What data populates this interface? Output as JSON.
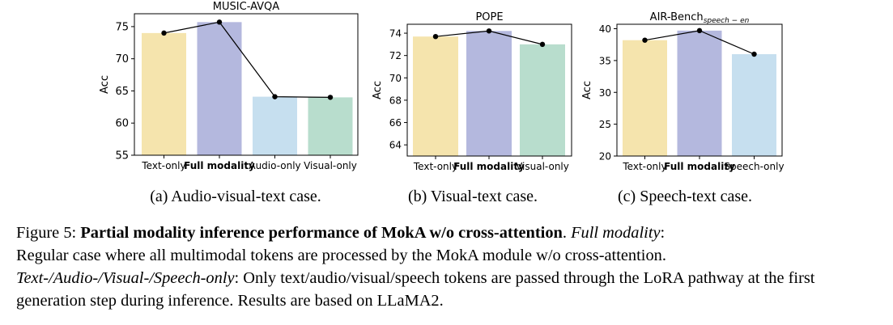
{
  "chart_data": [
    {
      "type": "bar",
      "title": "MUSIC-AVQA",
      "ylabel": "Acc",
      "categories": [
        "Text-only",
        "Full modality",
        "Audio-only",
        "Visual-only"
      ],
      "bold_category": "Full modality",
      "values": [
        74.0,
        75.7,
        64.1,
        64.0
      ],
      "line_overlay": true,
      "ylim": [
        55,
        77
      ],
      "yticks": [
        55,
        60,
        65,
        70,
        75
      ],
      "colors": [
        "#f5e4ad",
        "#b4b8de",
        "#c6dfef",
        "#b8ddcd"
      ],
      "grid": false
    },
    {
      "type": "bar",
      "title": "POPE",
      "ylabel": "Acc",
      "categories": [
        "Text-only",
        "Full modality",
        "Visual-only"
      ],
      "bold_category": "Full modality",
      "values": [
        73.7,
        74.2,
        73.0
      ],
      "line_overlay": true,
      "ylim": [
        63,
        74.8
      ],
      "yticks": [
        64,
        66,
        68,
        70,
        72,
        74
      ],
      "colors": [
        "#f5e4ad",
        "#b4b8de",
        "#b8ddcd"
      ],
      "grid": false
    },
    {
      "type": "bar",
      "title": "AIR-Bench",
      "title_subscript": "speech − en",
      "ylabel": "Acc",
      "categories": [
        "Text-only",
        "Full modality",
        "Speech-only"
      ],
      "bold_category": "Full modality",
      "values": [
        38.2,
        39.7,
        36.0
      ],
      "line_overlay": true,
      "ylim": [
        20,
        40.7
      ],
      "yticks": [
        20,
        25,
        30,
        35,
        40
      ],
      "colors": [
        "#f5e4ad",
        "#b4b8de",
        "#c6dfef"
      ],
      "grid": false
    }
  ],
  "subcaptions": {
    "a": "(a) Audio-visual-text case.",
    "b": "(b) Visual-text case.",
    "c": "(c) Speech-text case."
  },
  "figure_caption": {
    "label": "Figure 5:",
    "bold_title": "Partial modality inference performance of MokA w/o cross-attention",
    "after_title": ".",
    "full_modality_term": "Full modality",
    "full_modality_text": ": Regular case where all multimodal tokens are processed by the MokA module w/o cross-attention.",
    "only_term": "Text-/Audio-/Visual-/Speech-only",
    "only_text": ": Only text/audio/visual/speech tokens are passed through the LoRA pathway at the first generation step during inference. Results are based on LLaMA2."
  }
}
